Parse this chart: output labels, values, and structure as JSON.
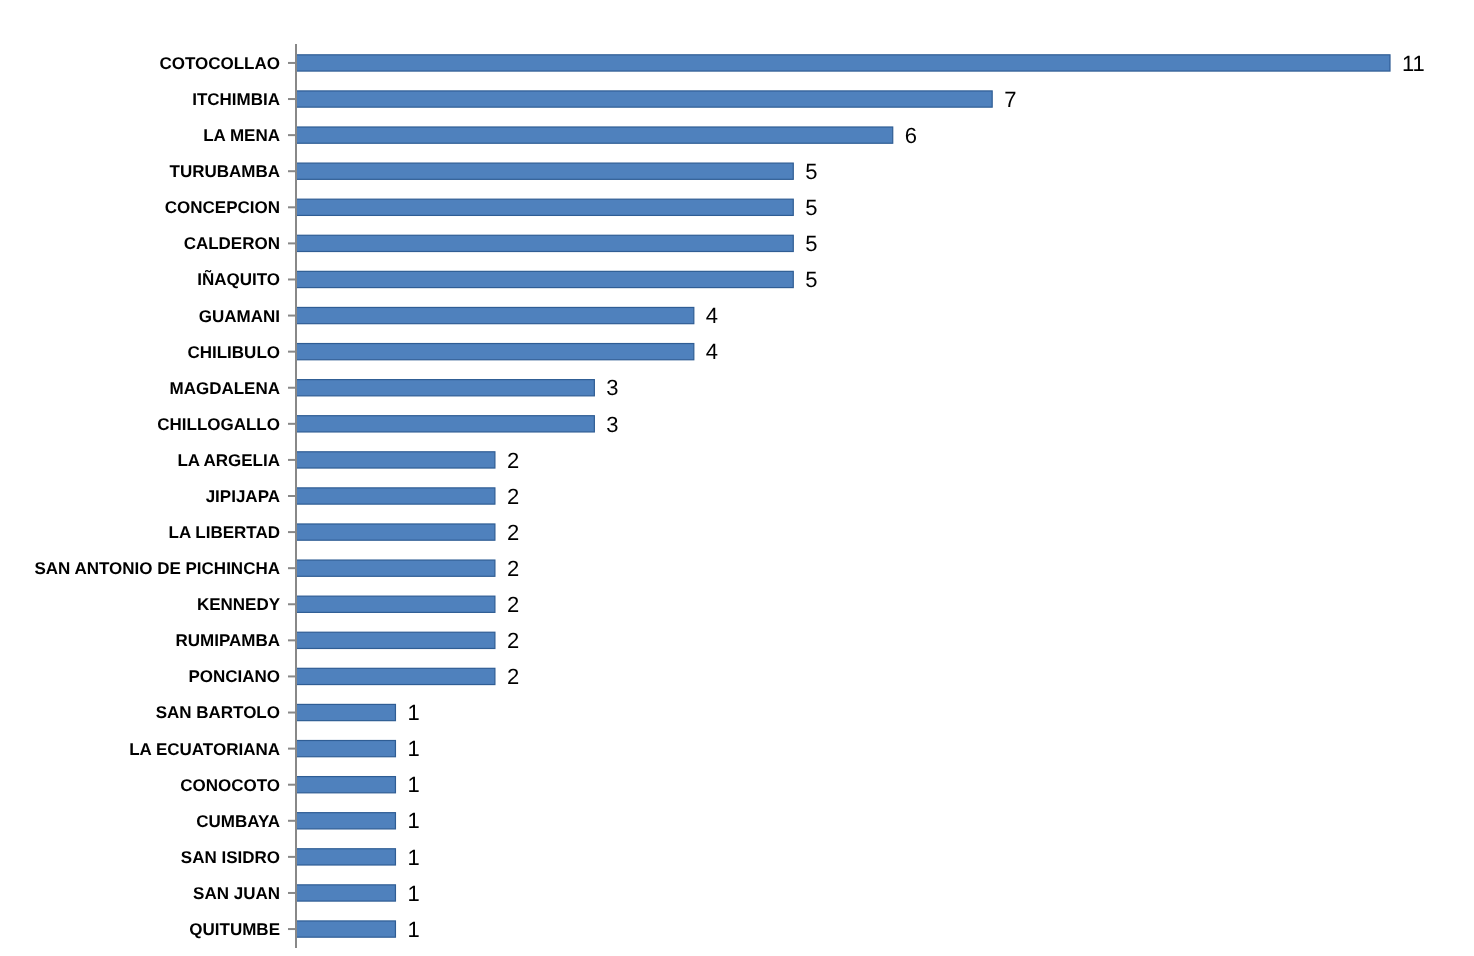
{
  "chart_data": {
    "type": "bar",
    "orientation": "horizontal",
    "categories": [
      "COTOCOLLAO",
      "ITCHIMBIA",
      "LA MENA",
      "TURUBAMBA",
      "CONCEPCION",
      "CALDERON",
      "IÑAQUITO",
      "GUAMANI",
      "CHILIBULO",
      "MAGDALENA",
      "CHILLOGALLO",
      "LA ARGELIA",
      "JIPIJAPA",
      "LA LIBERTAD",
      "SAN ANTONIO DE PICHINCHA",
      "KENNEDY",
      "RUMIPAMBA",
      "PONCIANO",
      "SAN BARTOLO",
      "LA ECUATORIANA",
      "CONOCOTO",
      "CUMBAYA",
      "SAN ISIDRO",
      "SAN JUAN",
      "QUITUMBE"
    ],
    "values": [
      11,
      7,
      6,
      5,
      5,
      5,
      5,
      4,
      4,
      3,
      3,
      2,
      2,
      2,
      2,
      2,
      2,
      2,
      1,
      1,
      1,
      1,
      1,
      1,
      1
    ],
    "color": "#4f81bd",
    "data_labels": true
  }
}
